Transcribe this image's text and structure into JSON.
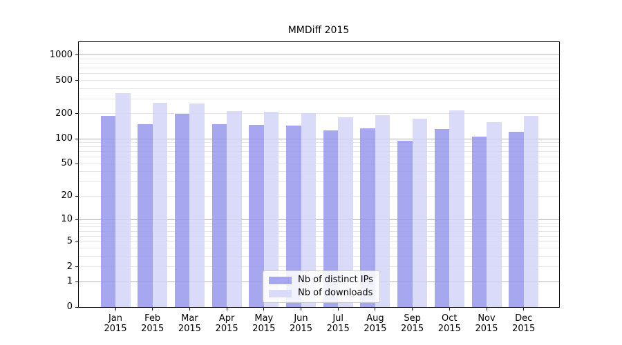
{
  "chart_data": {
    "type": "bar",
    "title": "MMDiff 2015",
    "categories": [
      "Jan",
      "Feb",
      "Mar",
      "Apr",
      "May",
      "Jun",
      "Jul",
      "Aug",
      "Sep",
      "Oct",
      "Nov",
      "Dec"
    ],
    "year_label": "2015",
    "series": [
      {
        "name": "Nb of distinct IPs",
        "color": "rgba(152,152,236,0.85)",
        "legend_color": "#a7a7ef",
        "values": [
          190,
          150,
          200,
          150,
          148,
          143,
          125,
          133,
          95,
          131,
          107,
          122
        ]
      },
      {
        "name": "Nb of downloads",
        "color": "rgba(212,212,248,0.85)",
        "legend_color": "#dadaf9",
        "values": [
          350,
          270,
          265,
          215,
          210,
          205,
          180,
          192,
          175,
          218,
          158,
          190
        ]
      }
    ],
    "y_ticks": [
      1000,
      500,
      200,
      100,
      50,
      20,
      10,
      5,
      2,
      1,
      0
    ],
    "yscale": "log1p",
    "ylim": [
      0,
      1430
    ],
    "xlabel": "",
    "ylabel": "",
    "grid": {
      "on": true,
      "major_color": "#b0b0b0",
      "minor_color": "#e6e6e6"
    },
    "legend_position": "lower center"
  }
}
